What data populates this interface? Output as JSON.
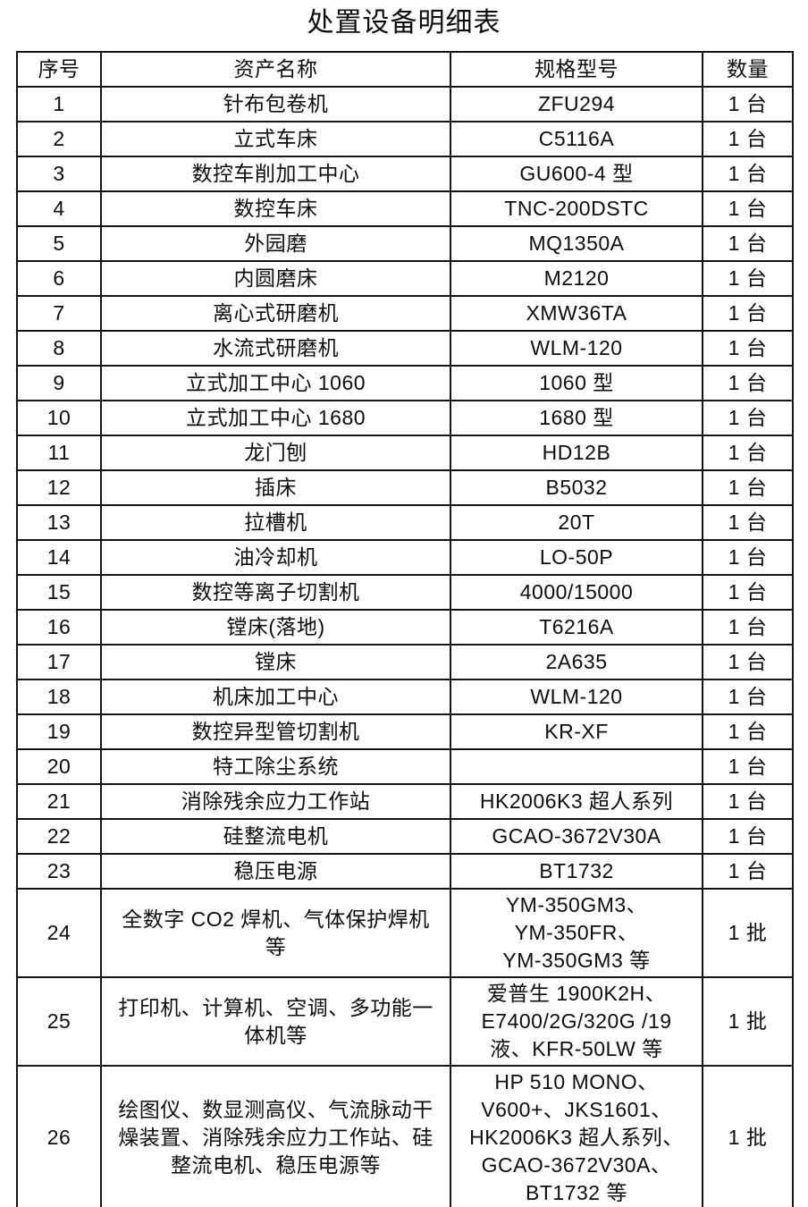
{
  "title": "处置设备明细表",
  "table": {
    "headers": [
      "序号",
      "资产名称",
      "规格型号",
      "数量"
    ],
    "rows": [
      {
        "no": "1",
        "name": "针布包卷机",
        "spec": "ZFU294",
        "qty": "1 台"
      },
      {
        "no": "2",
        "name": "立式车床",
        "spec": "C5116A",
        "qty": "1 台"
      },
      {
        "no": "3",
        "name": "数控车削加工中心",
        "spec": "GU600-4 型",
        "qty": "1 台"
      },
      {
        "no": "4",
        "name": "数控车床",
        "spec": "TNC-200DSTC",
        "qty": "1 台"
      },
      {
        "no": "5",
        "name": "外园磨",
        "spec": "MQ1350A",
        "qty": "1 台"
      },
      {
        "no": "6",
        "name": "内圆磨床",
        "spec": "M2120",
        "qty": "1 台"
      },
      {
        "no": "7",
        "name": "离心式研磨机",
        "spec": "XMW36TA",
        "qty": "1 台"
      },
      {
        "no": "8",
        "name": "水流式研磨机",
        "spec": "WLM-120",
        "qty": "1 台"
      },
      {
        "no": "9",
        "name": "立式加工中心 1060",
        "spec": "1060 型",
        "qty": "1 台"
      },
      {
        "no": "10",
        "name": "立式加工中心 1680",
        "spec": "1680 型",
        "qty": "1 台"
      },
      {
        "no": "11",
        "name": "龙门刨",
        "spec": "HD12B",
        "qty": "1 台"
      },
      {
        "no": "12",
        "name": "插床",
        "spec": "B5032",
        "qty": "1 台"
      },
      {
        "no": "13",
        "name": "拉槽机",
        "spec": "20T",
        "qty": "1 台"
      },
      {
        "no": "14",
        "name": "油冷却机",
        "spec": "LO-50P",
        "qty": "1 台"
      },
      {
        "no": "15",
        "name": "数控等离子切割机",
        "spec": "4000/15000",
        "qty": "1 台"
      },
      {
        "no": "16",
        "name": "镗床(落地)",
        "spec": "T6216A",
        "qty": "1 台"
      },
      {
        "no": "17",
        "name": "镗床",
        "spec": "2A635",
        "qty": "1 台"
      },
      {
        "no": "18",
        "name": "机床加工中心",
        "spec": "WLM-120",
        "qty": "1 台"
      },
      {
        "no": "19",
        "name": "数控异型管切割机",
        "spec": "KR-XF",
        "qty": "1 台"
      },
      {
        "no": "20",
        "name": "特工除尘系统",
        "spec": "",
        "qty": "1 台"
      },
      {
        "no": "21",
        "name": "消除残余应力工作站",
        "spec": "HK2006K3 超人系列",
        "qty": "1 台"
      },
      {
        "no": "22",
        "name": "硅整流电机",
        "spec": "GCAO-3672V30A",
        "qty": "1 台"
      },
      {
        "no": "23",
        "name": "稳压电源",
        "spec": "BT1732",
        "qty": "1 台"
      },
      {
        "no": "24",
        "name": "全数字 CO2 焊机、气体保护焊机\n等",
        "spec": "YM-350GM3、\nYM-350FR、\nYM-350GM3 等",
        "qty": "1 批"
      },
      {
        "no": "25",
        "name": "打印机、计算机、空调、多功能一\n体机等",
        "spec": "爱普生 1900K2H、\nE7400/2G/320G /19\n液、KFR-50LW 等",
        "qty": "1 批"
      },
      {
        "no": "26",
        "name": "绘图仪、数显测高仪、气流脉动干\n燥装置、消除残余应力工作站、硅\n整流电机、稳压电源等",
        "spec": "HP 510 MONO、\nV600+、JKS1601、\nHK2006K3 超人系列、\nGCAO-3672V30A、\nBT1732 等",
        "qty": "1 批"
      }
    ]
  }
}
